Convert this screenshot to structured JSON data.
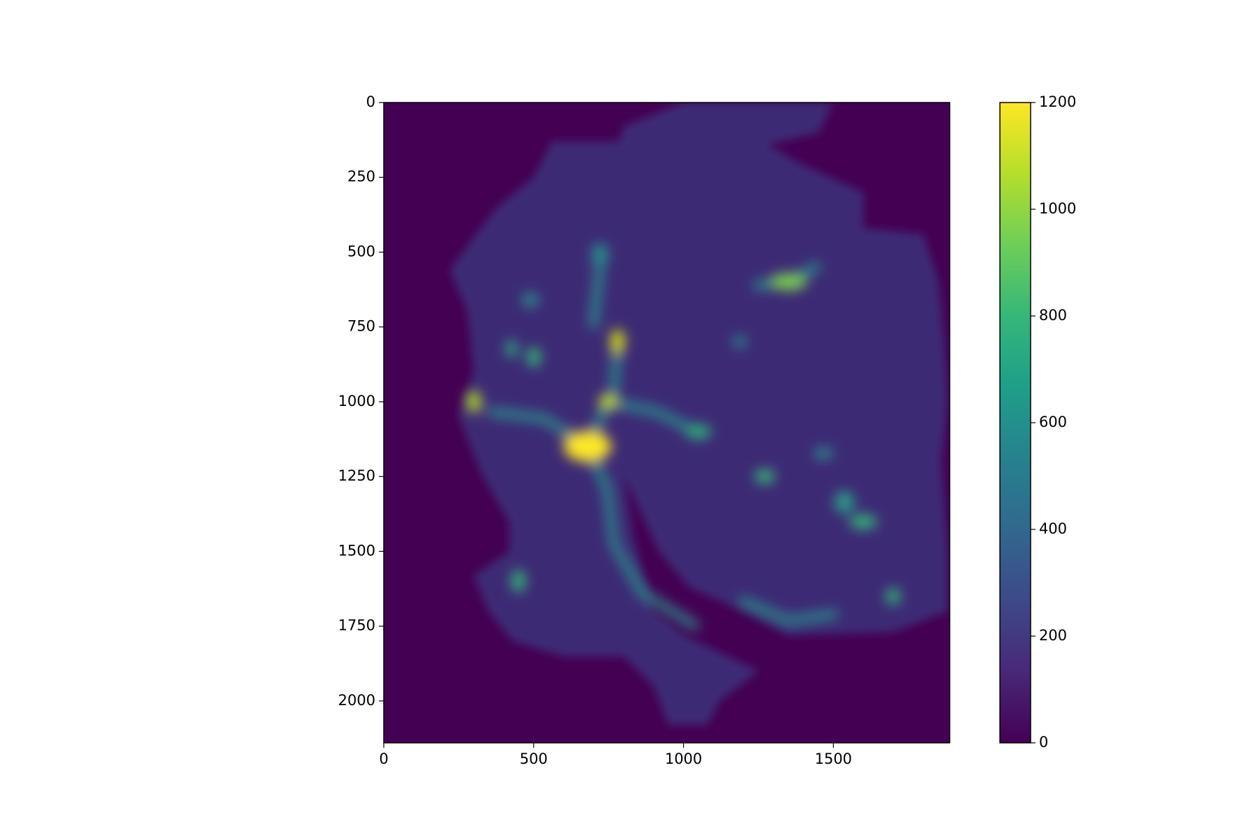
{
  "chart_data": {
    "type": "image",
    "xlim": [
      0,
      1888
    ],
    "ylim": [
      2140,
      0
    ],
    "xticks": [
      0,
      500,
      1000,
      1500
    ],
    "yticks": [
      0,
      250,
      500,
      750,
      1000,
      1250,
      1500,
      1750,
      2000
    ],
    "colorbar": {
      "colormap": "viridis",
      "clim": [
        0,
        1200
      ],
      "ticks": [
        0,
        200,
        400,
        600,
        800,
        1000,
        1200
      ]
    }
  }
}
